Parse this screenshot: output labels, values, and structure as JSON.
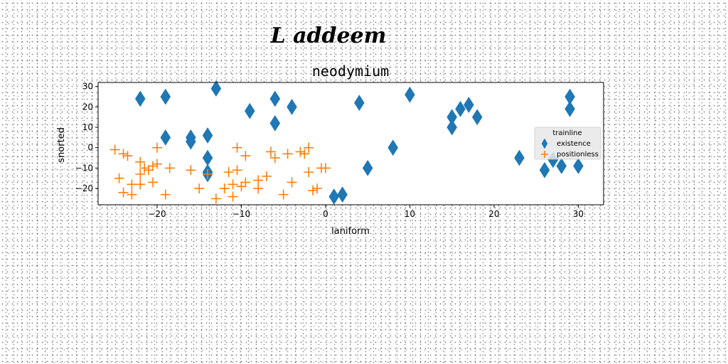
{
  "chart_data": {
    "type": "scatter",
    "suptitle": "L addeem",
    "title": "neodymium",
    "xlabel": "laniform",
    "ylabel": "snorted",
    "xlim": [
      -27,
      33
    ],
    "ylim": [
      -28,
      32
    ],
    "xticks": [
      -20,
      -10,
      0,
      10,
      20,
      30
    ],
    "yticks": [
      -20,
      -10,
      0,
      10,
      20,
      30
    ],
    "grid": false,
    "legend": {
      "title": "trainline",
      "placement": "center-right",
      "entries": [
        "existence",
        "positionless"
      ]
    },
    "series": [
      {
        "name": "existence",
        "marker": "thin_diamond",
        "color": "#1f77b4",
        "x": [
          -22,
          -19,
          -13,
          -9,
          -6,
          -4,
          -6,
          -19,
          -16,
          -16,
          -14,
          -14,
          -14,
          -14,
          1,
          2,
          4,
          5,
          8,
          10,
          15,
          15,
          16,
          17,
          18,
          23,
          26,
          27,
          28,
          29,
          29,
          30
        ],
        "y": [
          24,
          25,
          29,
          18,
          24,
          20,
          12,
          5,
          5,
          3,
          6,
          -5,
          -12,
          -13,
          -24,
          -23,
          22,
          -10,
          0,
          26,
          15,
          10,
          19,
          21,
          15,
          -5,
          -11,
          -6,
          -9,
          25,
          19,
          -9
        ]
      },
      {
        "name": "positionless",
        "marker": "plus",
        "color": "#ff7f0e",
        "x": [
          -25,
          -24,
          -23.5,
          -23,
          -24.5,
          -24,
          -23,
          -22,
          -22,
          -21.5,
          -21,
          -20.5,
          -20.5,
          -20,
          -22,
          -20,
          -19,
          -18.5,
          -16,
          -15,
          -14,
          -13,
          -12,
          -11.5,
          -11,
          -11,
          -10.5,
          -10.5,
          -10,
          -9.5,
          -9.5,
          -8,
          -8,
          -7,
          -6.5,
          -6,
          -5,
          -4.5,
          -4,
          -3,
          -2.5,
          -2,
          -2,
          -1.5,
          -1,
          -0.5,
          0
        ],
        "y": [
          -1,
          -3,
          -4,
          -23,
          -15,
          -22,
          -18,
          -7,
          -13,
          -10,
          -11,
          -9,
          -17,
          -8,
          -18,
          0,
          -23,
          -10,
          -11,
          -20,
          -13,
          -25,
          -20,
          -12,
          -24,
          -18,
          -11,
          0,
          -19,
          -17,
          -4,
          -16,
          -20,
          -14,
          -2,
          -5,
          -23,
          -3,
          -17,
          -2,
          -3,
          0,
          -12,
          -21,
          -20,
          -10,
          -10
        ]
      }
    ]
  }
}
